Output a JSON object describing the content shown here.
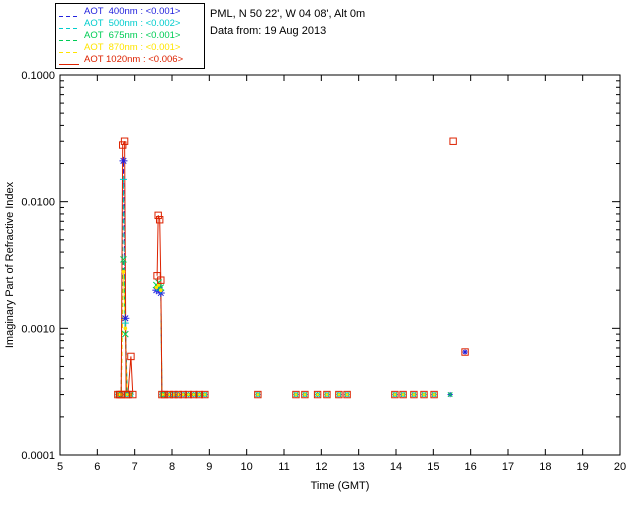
{
  "header": {
    "location": "PML, N 50 22', W 04 08', Alt 0m",
    "date": "Data from: 19 Aug 2013"
  },
  "legend": {
    "position": "top-left",
    "items": [
      {
        "label": "AOT  400nm : <0.001>",
        "color": "#2222dd",
        "dash": "4,3"
      },
      {
        "label": "AOT  500nm : <0.002>",
        "color": "#00cccc",
        "dash": "4,3"
      },
      {
        "label": "AOT  675nm : <0.001>",
        "color": "#00cc55",
        "dash": "4,3"
      },
      {
        "label": "AOT  870nm : <0.001>",
        "color": "#ffe400",
        "dash": "4,3"
      },
      {
        "label": "AOT 1020nm : <0.006>",
        "color": "#dd2200",
        "dash": ""
      }
    ]
  },
  "chart_data": {
    "type": "line",
    "title": "PML, N 50 22', W 04 08', Alt 0m",
    "subtitle": "Data from: 19 Aug 2013",
    "xlabel": "Time (GMT)",
    "ylabel": "Imaginary Part of Refractive Index",
    "xlim": [
      5,
      20
    ],
    "ylim": [
      0.0001,
      0.1
    ],
    "yscale": "log",
    "grid": false,
    "xticks": [
      5,
      6,
      7,
      8,
      9,
      10,
      11,
      12,
      13,
      14,
      15,
      16,
      17,
      18,
      19,
      20
    ],
    "yticks": [
      {
        "value": 0.0001,
        "label": "0.0001"
      },
      {
        "value": 0.001,
        "label": "0.0010"
      },
      {
        "value": 0.01,
        "label": "0.0100"
      },
      {
        "value": 0.1,
        "label": "0.1000"
      }
    ],
    "series": [
      {
        "name": "AOT  400nm",
        "wavelength": "400nm",
        "mean_aot": "<0.001>",
        "color": "#2222dd",
        "marker": "asterisk",
        "dash": "4,3",
        "segments": [
          [
            [
              6.55,
              0.0003
            ],
            [
              6.6,
              0.0003
            ],
            [
              6.64,
              0.0003
            ],
            [
              6.7,
              0.021
            ],
            [
              6.75,
              0.0012
            ],
            [
              6.8,
              0.0003
            ],
            [
              6.9,
              0.0003
            ]
          ],
          [
            [
              7.58,
              0.002
            ],
            [
              7.64,
              0.0021
            ],
            [
              7.7,
              0.0019
            ],
            [
              7.73,
              0.0003
            ],
            [
              7.8,
              0.0003
            ],
            [
              7.93,
              0.0003
            ],
            [
              8.05,
              0.0003
            ],
            [
              8.17,
              0.0003
            ],
            [
              8.3,
              0.0003
            ],
            [
              8.44,
              0.0003
            ],
            [
              8.58,
              0.0003
            ],
            [
              8.73,
              0.0003
            ],
            [
              8.88,
              0.0003
            ]
          ]
        ],
        "points": [
          [
            10.3,
            0.0003
          ],
          [
            11.32,
            0.0003
          ],
          [
            11.56,
            0.0003
          ],
          [
            11.9,
            0.0003
          ],
          [
            12.15,
            0.0003
          ],
          [
            12.47,
            0.0003
          ],
          [
            12.69,
            0.0003
          ],
          [
            13.97,
            0.0003
          ],
          [
            14.19,
            0.0003
          ],
          [
            14.48,
            0.0003
          ],
          [
            14.75,
            0.0003
          ],
          [
            15.02,
            0.0003
          ],
          [
            15.45,
            0.0003
          ],
          [
            15.85,
            0.00065
          ]
        ]
      },
      {
        "name": "AOT  500nm",
        "wavelength": "500nm",
        "mean_aot": "<0.002>",
        "color": "#00cccc",
        "marker": "plus",
        "dash": "4,3",
        "segments": [
          [
            [
              6.55,
              0.0003
            ],
            [
              6.6,
              0.0003
            ],
            [
              6.64,
              0.0003
            ],
            [
              6.7,
              0.015
            ],
            [
              6.75,
              0.0011
            ],
            [
              6.8,
              0.0003
            ],
            [
              6.9,
              0.0003
            ]
          ],
          [
            [
              7.58,
              0.0021
            ],
            [
              7.64,
              0.0022
            ],
            [
              7.7,
              0.002
            ],
            [
              7.73,
              0.0003
            ],
            [
              7.8,
              0.0003
            ],
            [
              7.93,
              0.0003
            ],
            [
              8.05,
              0.0003
            ],
            [
              8.17,
              0.0003
            ],
            [
              8.3,
              0.0003
            ],
            [
              8.44,
              0.0003
            ],
            [
              8.58,
              0.0003
            ],
            [
              8.73,
              0.0003
            ],
            [
              8.88,
              0.0003
            ]
          ]
        ],
        "points": [
          [
            10.3,
            0.0003
          ],
          [
            11.32,
            0.0003
          ],
          [
            11.56,
            0.0003
          ],
          [
            11.9,
            0.0003
          ],
          [
            12.15,
            0.0003
          ],
          [
            12.47,
            0.0003
          ],
          [
            12.69,
            0.0003
          ],
          [
            13.97,
            0.0003
          ],
          [
            14.19,
            0.0003
          ],
          [
            14.48,
            0.0003
          ],
          [
            14.75,
            0.0003
          ],
          [
            15.02,
            0.0003
          ]
        ]
      },
      {
        "name": "AOT  675nm",
        "wavelength": "675nm",
        "mean_aot": "<0.001>",
        "color": "#00cc55",
        "marker": "cross",
        "dash": "4,3",
        "segments": [
          [
            [
              6.55,
              0.0003
            ],
            [
              6.6,
              0.0003
            ],
            [
              6.64,
              0.0003
            ],
            [
              6.7,
              0.0035
            ],
            [
              6.75,
              0.0009
            ],
            [
              6.8,
              0.0003
            ],
            [
              6.9,
              0.0003
            ]
          ],
          [
            [
              7.58,
              0.0022
            ],
            [
              7.64,
              0.0023
            ],
            [
              7.7,
              0.0021
            ],
            [
              7.73,
              0.0003
            ],
            [
              7.8,
              0.0003
            ],
            [
              7.93,
              0.0003
            ],
            [
              8.05,
              0.0003
            ],
            [
              8.17,
              0.0003
            ],
            [
              8.3,
              0.0003
            ],
            [
              8.44,
              0.0003
            ],
            [
              8.58,
              0.0003
            ],
            [
              8.73,
              0.0003
            ],
            [
              8.88,
              0.0003
            ]
          ]
        ],
        "points": [
          [
            10.3,
            0.0003
          ],
          [
            11.32,
            0.0003
          ],
          [
            11.56,
            0.0003
          ],
          [
            11.9,
            0.0003
          ],
          [
            12.15,
            0.0003
          ],
          [
            12.47,
            0.0003
          ],
          [
            12.69,
            0.0003
          ],
          [
            13.97,
            0.0003
          ],
          [
            14.19,
            0.0003
          ],
          [
            14.48,
            0.0003
          ],
          [
            14.75,
            0.0003
          ],
          [
            15.02,
            0.0003
          ],
          [
            15.45,
            0.0003
          ]
        ]
      },
      {
        "name": "AOT  870nm",
        "wavelength": "870nm",
        "mean_aot": "<0.001>",
        "color": "#ffe400",
        "marker": "dot",
        "dash": "4,3",
        "segments": [
          [
            [
              6.55,
              0.0003
            ],
            [
              6.6,
              0.0003
            ],
            [
              6.64,
              0.0003
            ],
            [
              6.7,
              0.0028
            ],
            [
              6.75,
              0.001
            ],
            [
              6.8,
              0.0003
            ],
            [
              6.9,
              0.0003
            ]
          ],
          [
            [
              7.58,
              0.0021
            ],
            [
              7.64,
              0.0022
            ],
            [
              7.7,
              0.002
            ],
            [
              7.73,
              0.0003
            ],
            [
              7.8,
              0.0003
            ],
            [
              7.93,
              0.0003
            ],
            [
              8.05,
              0.0003
            ],
            [
              8.17,
              0.0003
            ],
            [
              8.3,
              0.0003
            ],
            [
              8.44,
              0.0003
            ],
            [
              8.58,
              0.0003
            ],
            [
              8.73,
              0.0003
            ],
            [
              8.88,
              0.0003
            ]
          ]
        ],
        "points": [
          [
            10.3,
            0.0003
          ],
          [
            11.32,
            0.0003
          ],
          [
            11.56,
            0.0003
          ],
          [
            11.9,
            0.0003
          ],
          [
            12.15,
            0.0003
          ],
          [
            12.47,
            0.0003
          ],
          [
            12.69,
            0.0003
          ],
          [
            13.97,
            0.0003
          ],
          [
            14.19,
            0.0003
          ],
          [
            14.48,
            0.0003
          ],
          [
            14.75,
            0.0003
          ],
          [
            15.02,
            0.0003
          ]
        ]
      },
      {
        "name": "AOT 1020nm",
        "wavelength": "1020nm",
        "mean_aot": "<0.006>",
        "color": "#dd2200",
        "marker": "square",
        "dash": "",
        "segments": [
          [
            [
              6.55,
              0.0003
            ],
            [
              6.6,
              0.0003
            ],
            [
              6.64,
              0.0003
            ],
            [
              6.68,
              0.028
            ],
            [
              6.73,
              0.03
            ],
            [
              6.77,
              0.0003
            ],
            [
              6.82,
              0.0003
            ],
            [
              6.9,
              0.0006
            ],
            [
              6.95,
              0.0003
            ]
          ],
          [
            [
              7.6,
              0.0026
            ],
            [
              7.63,
              0.0078
            ],
            [
              7.67,
              0.0072
            ],
            [
              7.7,
              0.0024
            ],
            [
              7.73,
              0.0003
            ],
            [
              7.8,
              0.0003
            ],
            [
              7.93,
              0.0003
            ],
            [
              8.05,
              0.0003
            ],
            [
              8.17,
              0.0003
            ],
            [
              8.3,
              0.0003
            ],
            [
              8.44,
              0.0003
            ],
            [
              8.58,
              0.0003
            ],
            [
              8.73,
              0.0003
            ],
            [
              8.88,
              0.0003
            ]
          ]
        ],
        "points": [
          [
            10.3,
            0.0003
          ],
          [
            11.32,
            0.0003
          ],
          [
            11.56,
            0.0003
          ],
          [
            11.9,
            0.0003
          ],
          [
            12.15,
            0.0003
          ],
          [
            12.47,
            0.0003
          ],
          [
            12.69,
            0.0003
          ],
          [
            13.97,
            0.0003
          ],
          [
            14.19,
            0.0003
          ],
          [
            14.48,
            0.0003
          ],
          [
            14.75,
            0.0003
          ],
          [
            15.02,
            0.0003
          ],
          [
            15.53,
            0.03
          ],
          [
            15.85,
            0.00065
          ]
        ]
      }
    ]
  }
}
